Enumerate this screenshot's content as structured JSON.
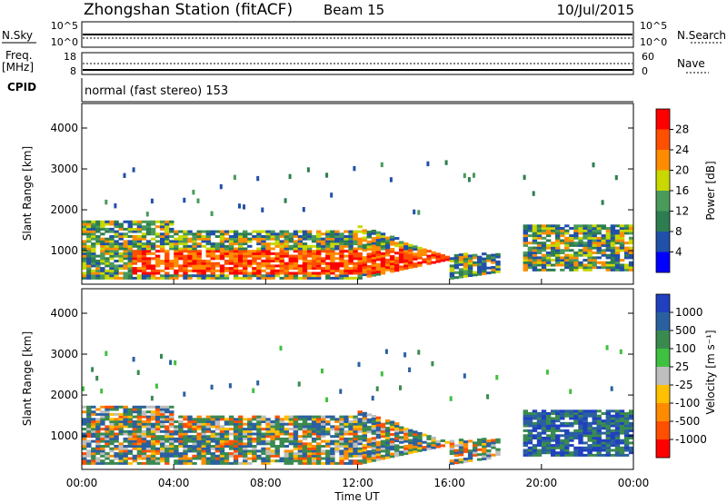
{
  "header": {
    "title": "Zhongshan Station (fitACF)",
    "beam": "Beam 15",
    "date": "10/Jul/2015"
  },
  "top_strip": {
    "left_label": "N.Sky",
    "right_label": "N.Search",
    "left_ticks": [
      "10^5",
      "10^0"
    ],
    "right_ticks": [
      "10^5",
      "10^0"
    ]
  },
  "freq_strip": {
    "left_label_1": "Freq.",
    "left_label_2": "[MHz]",
    "right_label": "Nave",
    "left_ticks": [
      "18",
      "8"
    ],
    "right_ticks": [
      "60",
      "0"
    ]
  },
  "cpid": {
    "label": "CPID",
    "text": "normal (fast stereo) 153"
  },
  "chart_data": [
    {
      "type": "heatmap",
      "name": "power",
      "ylabel": "Slant Range [km]",
      "ylim": [
        180,
        4600
      ],
      "yticks": [
        "4000",
        "3000",
        "2000",
        "1000"
      ],
      "yvals": [
        4000,
        3000,
        2000,
        1000
      ],
      "colorbar": {
        "label": "Power [dB]",
        "ticks": [
          "28",
          "24",
          "20",
          "16",
          "12",
          "8",
          "4"
        ],
        "colors": [
          "#0000ff",
          "#2050a8",
          "#2e7d50",
          "#4a9a5a",
          "#c8d800",
          "#ff8c00",
          "#ff5000",
          "#ff0000"
        ]
      }
    },
    {
      "type": "heatmap",
      "name": "velocity",
      "ylabel": "Slant Range [km]",
      "ylim": [
        180,
        4600
      ],
      "yticks": [
        "4000",
        "3000",
        "2000",
        "1000"
      ],
      "yvals": [
        4000,
        3000,
        2000,
        1000
      ],
      "colorbar": {
        "label": "Velocity [m s⁻¹]",
        "ticks": [
          "1000",
          "500",
          "100",
          "25",
          "-25",
          "-100",
          "-500",
          "-1000"
        ],
        "colors": [
          "#ff0000",
          "#ff5000",
          "#ff8c00",
          "#ffc000",
          "#bebebe",
          "#40c040",
          "#3a8a50",
          "#2a60a0",
          "#2040c0"
        ]
      }
    }
  ],
  "x_axis": {
    "label": "Time UT",
    "ticks": [
      "00:00",
      "04:00",
      "08:00",
      "12:00",
      "16:00",
      "20:00",
      "00:00"
    ],
    "xlim": [
      0,
      24
    ]
  }
}
